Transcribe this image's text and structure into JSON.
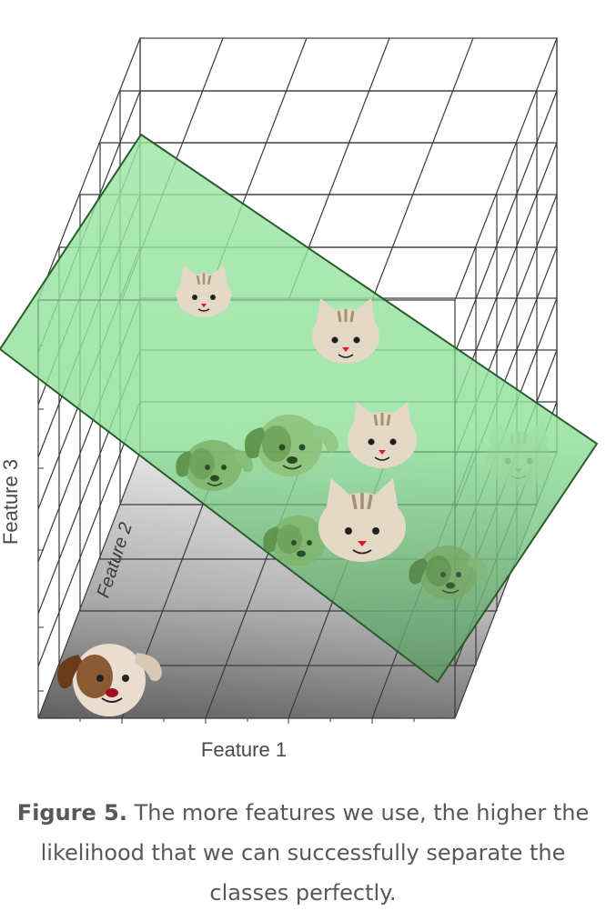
{
  "axes": {
    "x_label": "Feature 1",
    "y_label": "Feature 2",
    "z_label": "Feature 3"
  },
  "animals": [
    {
      "kind": "cat",
      "class": "cat"
    },
    {
      "kind": "cat",
      "class": "cat"
    },
    {
      "kind": "cat",
      "class": "cat"
    },
    {
      "kind": "cat",
      "class": "cat"
    },
    {
      "kind": "cat",
      "class": "cat"
    },
    {
      "kind": "dog",
      "class": "dog"
    },
    {
      "kind": "dog",
      "class": "dog"
    },
    {
      "kind": "dog",
      "class": "dog"
    },
    {
      "kind": "dog",
      "class": "dog"
    },
    {
      "kind": "dog",
      "class": "dog"
    }
  ],
  "colors": {
    "plane": "#8fe29a",
    "plane_edge": "#2b5b2f",
    "cat_fur": "#e4d8c6",
    "cat_stripe": "#a58f73",
    "cat_nose": "#e0142c",
    "dog_face": "#e9ddd0",
    "dog_ear": "#6b3b1e",
    "dog_patch": "#8a5a33",
    "grid": "#3a3a3a",
    "caption": "#55595c"
  },
  "caption": {
    "lead": "Figure 5.",
    "text": "The more features we use, the higher the likelihood that we can successfully separate the classes perfectly."
  }
}
